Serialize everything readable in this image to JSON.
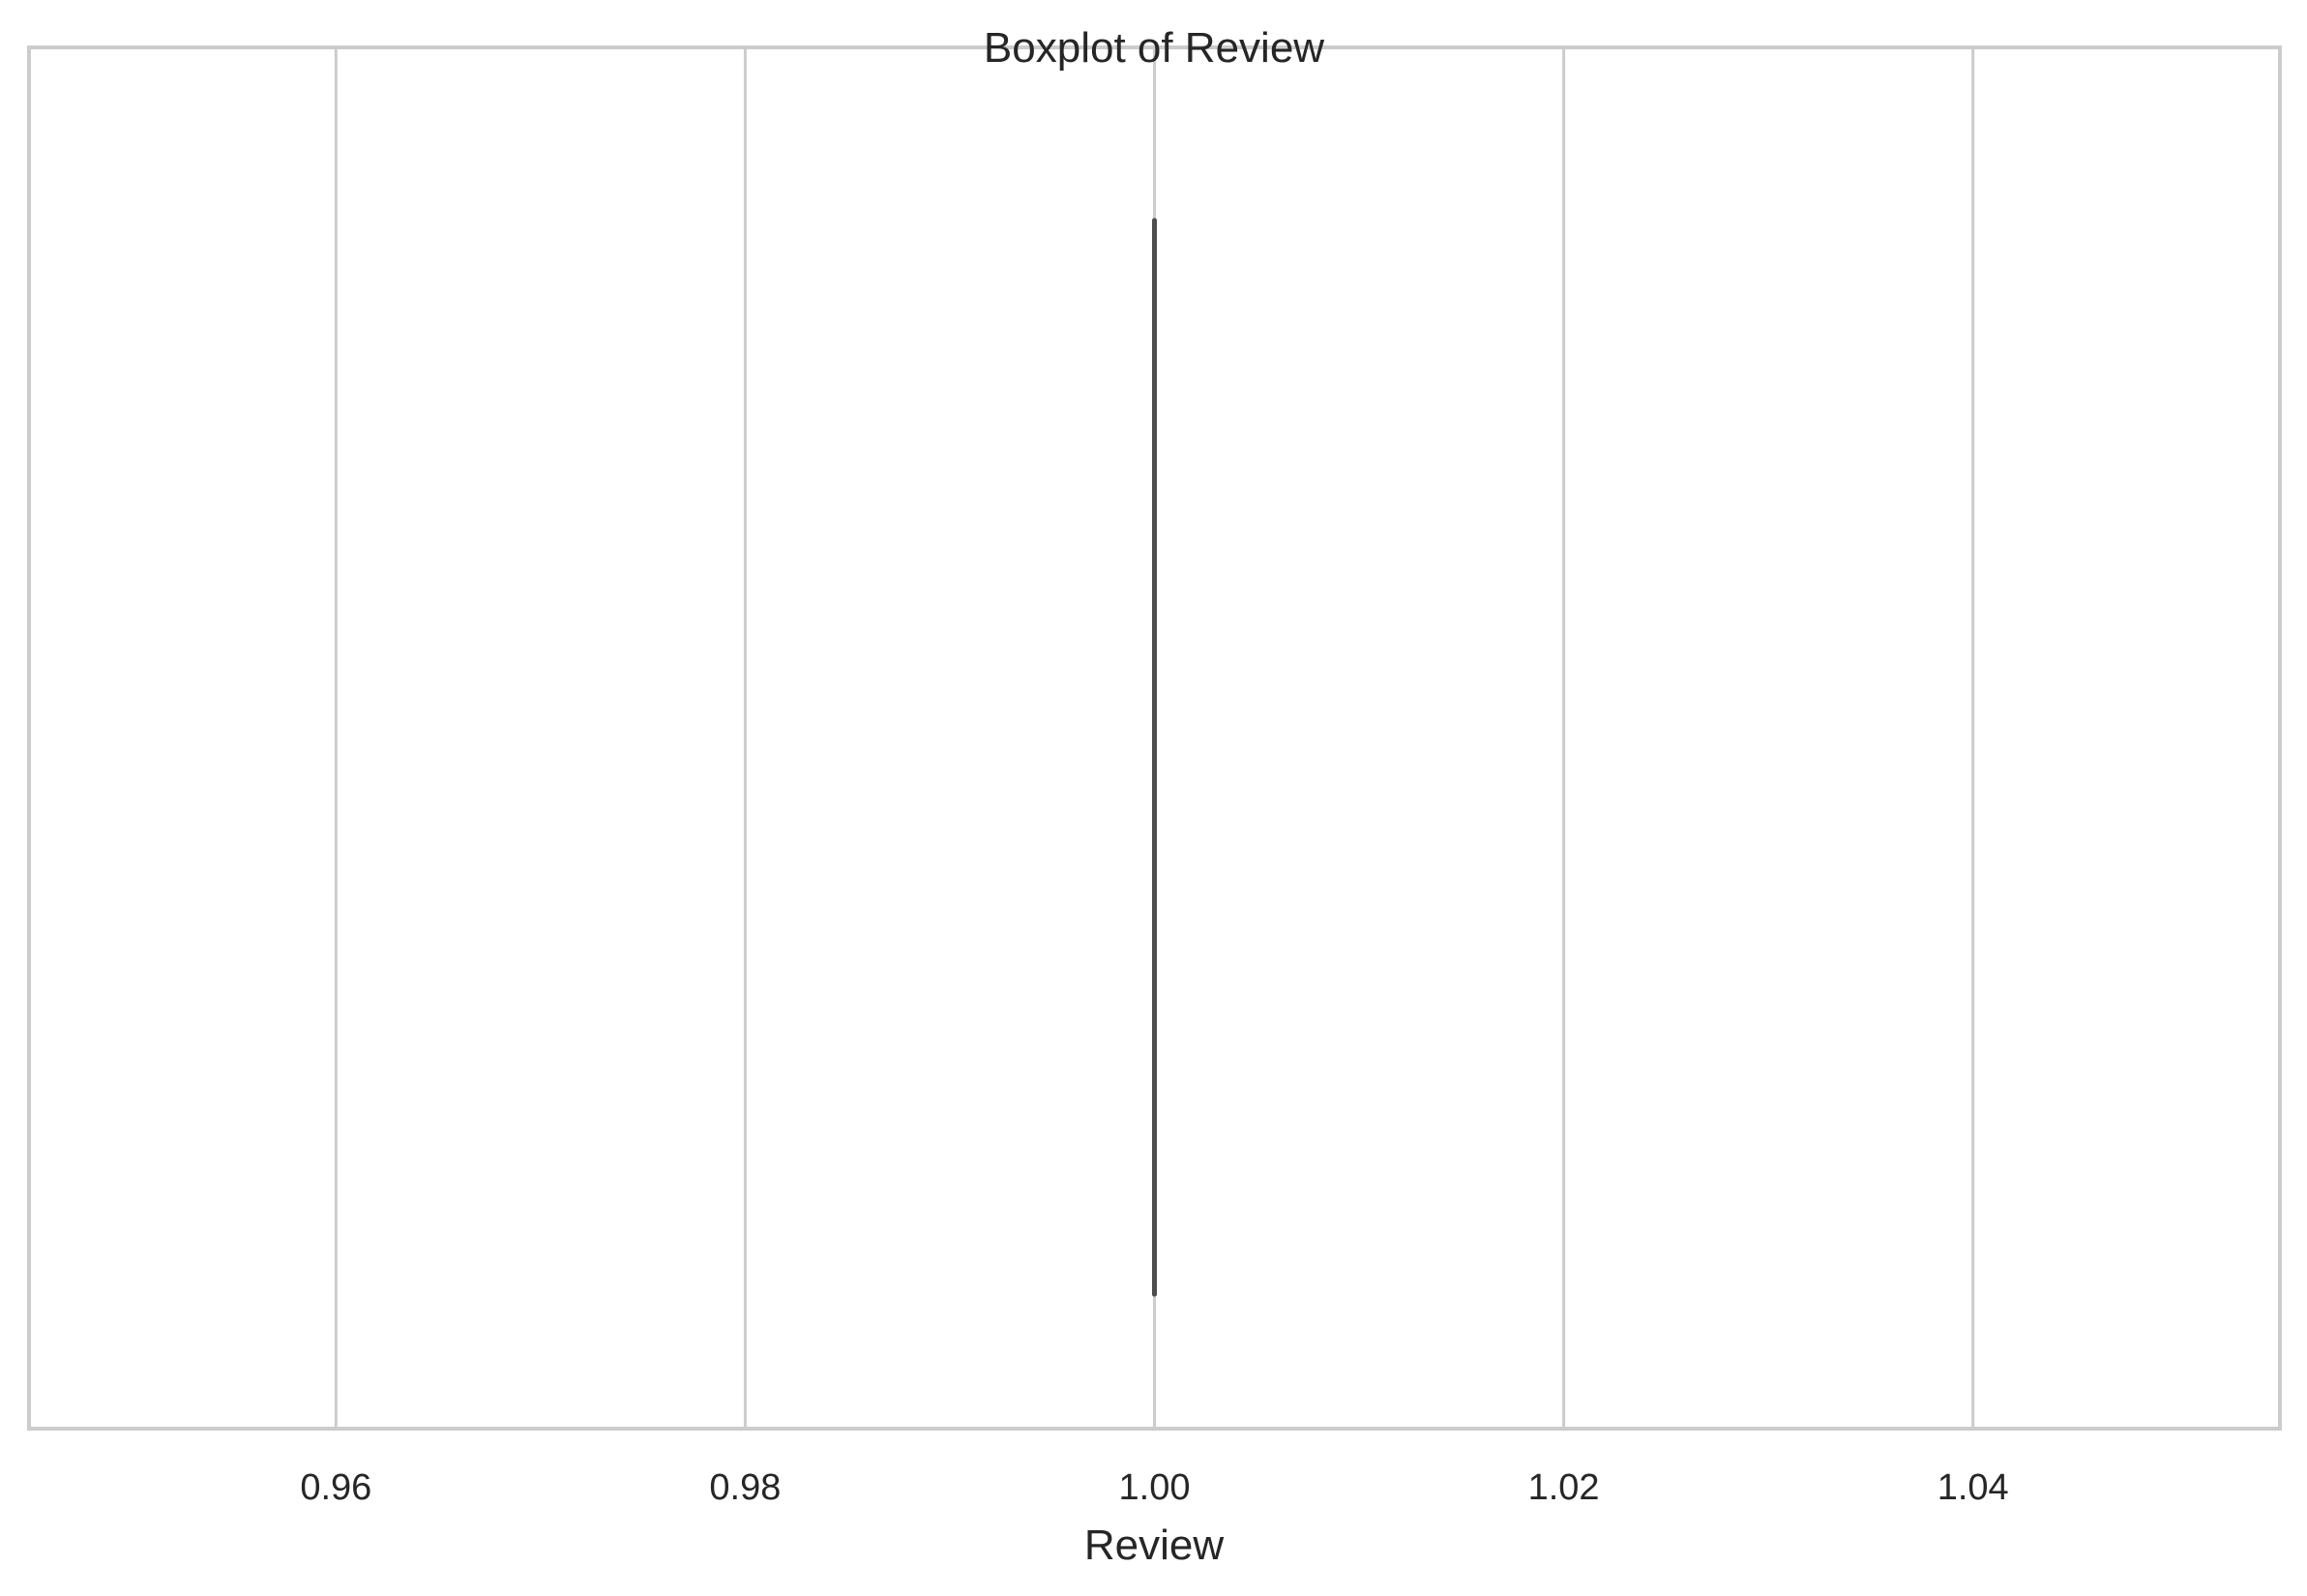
{
  "chart_data": {
    "type": "box",
    "title": "Boxplot of Review",
    "xlabel": "Review",
    "ylabel": "",
    "orientation": "horizontal",
    "xlim": [
      0.945,
      1.055
    ],
    "xticks": [
      0.96,
      0.98,
      1.0,
      1.02,
      1.04
    ],
    "xtick_labels": [
      "0.96",
      "0.98",
      "1.00",
      "1.02",
      "1.04"
    ],
    "grid": true,
    "legend": "none",
    "box": {
      "min": 1.0,
      "q1": 1.0,
      "median": 1.0,
      "q3": 1.0,
      "max": 1.0
    },
    "colors": {
      "box_line": "#4d4d4d",
      "grid": "#cccccc",
      "frame": "#cccccc",
      "text": "#262626",
      "background": "#ffffff"
    }
  }
}
